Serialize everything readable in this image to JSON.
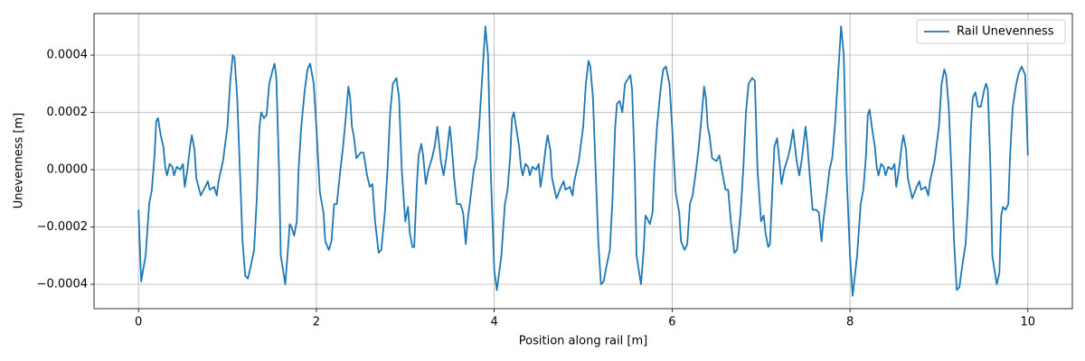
{
  "chart_data": {
    "type": "line",
    "xlabel": "Position along rail [m]",
    "ylabel": "Unevenness [m]",
    "xlim": [
      -0.5,
      10.5
    ],
    "ylim": [
      -0.000485,
      0.000545
    ],
    "xticks": [
      0,
      2,
      4,
      6,
      8,
      10
    ],
    "yticks": [
      {
        "value": -0.0004,
        "label": "−0.0004"
      },
      {
        "value": -0.0002,
        "label": "−0.0002"
      },
      {
        "value": 0,
        "label": "0.0000"
      },
      0.0002,
      0.0004
    ],
    "grid": true,
    "legend": "upper right",
    "x": [
      0,
      0.03,
      0.08,
      0.12,
      0.15,
      0.18,
      0.2,
      0.22,
      0.25,
      0.28,
      0.3,
      0.32,
      0.35,
      0.38,
      0.4,
      0.43,
      0.47,
      0.5,
      0.52,
      0.55,
      0.58,
      0.6,
      0.63,
      0.65,
      0.7,
      0.75,
      0.78,
      0.8,
      0.85,
      0.88,
      0.9,
      0.95,
      1.0,
      1.03,
      1.06,
      1.08,
      1.11,
      1.14,
      1.17,
      1.2,
      1.23,
      1.26,
      1.3,
      1.33,
      1.36,
      1.38,
      1.41,
      1.44,
      1.47,
      1.51,
      1.53,
      1.55,
      1.58,
      1.6,
      1.65,
      1.68,
      1.7,
      1.72,
      1.75,
      1.78,
      1.8,
      1.83,
      1.87,
      1.9,
      1.93,
      1.97,
      2.0,
      2.04,
      2.08,
      2.1,
      2.14,
      2.17,
      2.2,
      2.23,
      2.27,
      2.3,
      2.33,
      2.36,
      2.38,
      2.4,
      2.42,
      2.45,
      2.5,
      2.53,
      2.57,
      2.6,
      2.63,
      2.66,
      2.7,
      2.73,
      2.77,
      2.8,
      2.83,
      2.86,
      2.9,
      2.93,
      2.96,
      3.0,
      3.03,
      3.05,
      3.08,
      3.1,
      3.13,
      3.15,
      3.18,
      3.2,
      3.23,
      3.26,
      3.3,
      3.33,
      3.36,
      3.4,
      3.43,
      3.46,
      3.5,
      3.52,
      3.55,
      3.58,
      3.62,
      3.65,
      3.68,
      3.7,
      3.74,
      3.77,
      3.8,
      3.83,
      3.87,
      3.9,
      3.93,
      3.96,
      4,
      4.03,
      4.08,
      4.12,
      4.15,
      4.18,
      4.2,
      4.22,
      4.25,
      4.28,
      4.3,
      4.32,
      4.35,
      4.38,
      4.4,
      4.43,
      4.47,
      4.5,
      4.52,
      4.55,
      4.58,
      4.6,
      4.63,
      4.65,
      4.7,
      4.75,
      4.78,
      4.8,
      4.85,
      4.88,
      4.9,
      4.95,
      5.0,
      5.03,
      5.06,
      5.08,
      5.11,
      5.14,
      5.17,
      5.2,
      5.23,
      5.26,
      5.3,
      5.33,
      5.36,
      5.38,
      5.41,
      5.44,
      5.47,
      5.51,
      5.53,
      5.55,
      5.58,
      5.6,
      5.65,
      5.68,
      5.7,
      5.72,
      5.75,
      5.78,
      5.8,
      5.83,
      5.87,
      5.9,
      5.93,
      5.97,
      6.0,
      6.04,
      6.08,
      6.1,
      6.14,
      6.17,
      6.2,
      6.23,
      6.27,
      6.3,
      6.33,
      6.36,
      6.38,
      6.4,
      6.42,
      6.45,
      6.5,
      6.53,
      6.57,
      6.6,
      6.63,
      6.66,
      6.7,
      6.73,
      6.77,
      6.8,
      6.83,
      6.86,
      6.9,
      6.93,
      6.96,
      7.0,
      7.03,
      7.05,
      7.08,
      7.1,
      7.13,
      7.15,
      7.18,
      7.2,
      7.23,
      7.26,
      7.3,
      7.33,
      7.36,
      7.4,
      7.43,
      7.46,
      7.5,
      7.52,
      7.55,
      7.58,
      7.62,
      7.65,
      7.68,
      7.7,
      7.74,
      7.77,
      7.8,
      7.83,
      7.87,
      7.9,
      7.93,
      7.96,
      8,
      8.03,
      8.08,
      8.12,
      8.15,
      8.18,
      8.2,
      8.22,
      8.25,
      8.28,
      8.3,
      8.32,
      8.35,
      8.38,
      8.4,
      8.43,
      8.47,
      8.5,
      8.52,
      8.55,
      8.58,
      8.6,
      8.63,
      8.65,
      8.7,
      8.75,
      8.78,
      8.8,
      8.85,
      8.88,
      8.9,
      8.95,
      9.0,
      9.03,
      9.06,
      9.08,
      9.11,
      9.14,
      9.17,
      9.2,
      9.23,
      9.26,
      9.3,
      9.33,
      9.36,
      9.38,
      9.41,
      9.44,
      9.47,
      9.51,
      9.53,
      9.55,
      9.58,
      9.6,
      9.65,
      9.68,
      9.7,
      9.72,
      9.75,
      9.78,
      9.8,
      9.83,
      9.87,
      9.9,
      9.93,
      9.97,
      10.0
    ],
    "series": [
      {
        "name": "Rail Unevenness",
        "color": "#1f77b4",
        "values": [
          -0.00014,
          -0.00039,
          -0.0003,
          -0.00012,
          -7e-05,
          5e-05,
          0.00017,
          0.00018,
          0.00012,
          8e-05,
          1e-05,
          -2e-05,
          2e-05,
          1e-05,
          -2e-05,
          1e-05,
          0,
          2e-05,
          -6e-05,
          0,
          8e-05,
          0.00012,
          7e-05,
          -3e-05,
          -9e-05,
          -6e-05,
          -4e-05,
          -7e-05,
          -6e-05,
          -9e-05,
          -4e-05,
          3e-05,
          0.00015,
          0.0003,
          0.0004,
          0.00039,
          0.00025,
          0,
          -0.00025,
          -0.00037,
          -0.00038,
          -0.00034,
          -0.00028,
          -0.0001,
          0.00015,
          0.0002,
          0.00018,
          0.00019,
          0.0003,
          0.00035,
          0.00037,
          0.00032,
          0,
          -0.0003,
          -0.0004,
          -0.00028,
          -0.00019,
          -0.0002,
          -0.00023,
          -0.00018,
          0,
          0.00015,
          0.00028,
          0.00035,
          0.00037,
          0.0003,
          0.00015,
          -8e-05,
          -0.00015,
          -0.00025,
          -0.00028,
          -0.00025,
          -0.00012,
          -0.00012,
          0,
          8e-05,
          0.00018,
          0.00029,
          0.00025,
          0.00015,
          0.00012,
          4e-05,
          6e-05,
          6e-05,
          -2e-05,
          -6e-05,
          -5e-05,
          -0.00018,
          -0.00029,
          -0.00028,
          -0.00015,
          0,
          0.0002,
          0.0003,
          0.00032,
          0.00025,
          0,
          -0.00018,
          -0.00013,
          -0.00022,
          -0.00027,
          -0.00027,
          -5e-05,
          5e-05,
          9e-05,
          5e-05,
          -5e-05,
          0,
          4e-05,
          8e-05,
          0.00015,
          3e-05,
          -2e-05,
          4e-05,
          0.00015,
          9e-05,
          -3e-05,
          -0.00012,
          -0.00012,
          -0.00015,
          -0.00026,
          -0.00018,
          -8e-05,
          0,
          4e-05,
          0.00015,
          0.00035,
          0.0005,
          0.0004,
          0,
          -0.00035,
          -0.00042,
          -0.0003,
          -0.00012,
          -7e-05,
          5e-05,
          0.00018,
          0.0002,
          0.00014,
          8e-05,
          1e-05,
          -2e-05,
          2e-05,
          1e-05,
          -2e-05,
          1e-05,
          0,
          2e-05,
          -6e-05,
          0,
          8e-05,
          0.00012,
          7e-05,
          -3e-05,
          -0.0001,
          -6e-05,
          -4e-05,
          -7e-05,
          -6e-05,
          -9e-05,
          -4e-05,
          3e-05,
          0.00015,
          0.0003,
          0.00038,
          0.00036,
          0.00025,
          0,
          -0.00025,
          -0.0004,
          -0.00039,
          -0.00034,
          -0.00028,
          -0.0001,
          0.00015,
          0.00023,
          0.00024,
          0.0002,
          0.0003,
          0.00032,
          0.00033,
          0.00028,
          0,
          -0.0003,
          -0.0004,
          -0.00028,
          -0.00016,
          -0.00017,
          -0.00019,
          -0.00015,
          0,
          0.00015,
          0.00028,
          0.00035,
          0.00036,
          0.0003,
          0.00015,
          -8e-05,
          -0.00015,
          -0.00025,
          -0.00028,
          -0.00026,
          -0.00012,
          -9e-05,
          0,
          8e-05,
          0.00018,
          0.00029,
          0.00025,
          0.00015,
          0.00012,
          4e-05,
          3e-05,
          5e-05,
          -2e-05,
          -7e-05,
          -7e-05,
          -0.00018,
          -0.00029,
          -0.00028,
          -0.00015,
          0,
          0.0002,
          0.0003,
          0.00032,
          0.00031,
          0,
          -0.00018,
          -0.00016,
          -0.00022,
          -0.00027,
          -0.00026,
          -5e-05,
          8e-05,
          0.00011,
          5e-05,
          -5e-05,
          0,
          4e-05,
          8e-05,
          0.00014,
          3e-05,
          -2e-05,
          4e-05,
          0.00015,
          9e-05,
          -3e-05,
          -0.00014,
          -0.00014,
          -0.00015,
          -0.00025,
          -0.00018,
          -8e-05,
          0,
          4e-05,
          0.00015,
          0.00035,
          0.0005,
          0.0004,
          0,
          -0.0003,
          -0.00044,
          -0.0003,
          -0.00012,
          -7e-05,
          5e-05,
          0.00019,
          0.00021,
          0.00014,
          8e-05,
          1e-05,
          -2e-05,
          2e-05,
          1e-05,
          -2e-05,
          1e-05,
          0,
          2e-05,
          -6e-05,
          0,
          8e-05,
          0.00012,
          7e-05,
          -3e-05,
          -0.0001,
          -6e-05,
          -4e-05,
          -7e-05,
          -6e-05,
          -9e-05,
          -4e-05,
          3e-05,
          0.00015,
          0.0003,
          0.00035,
          0.00033,
          0.00022,
          0,
          -0.00025,
          -0.00042,
          -0.00041,
          -0.00034,
          -0.00026,
          -0.0001,
          0.00015,
          0.00025,
          0.00027,
          0.00022,
          0.00022,
          0.00028,
          0.0003,
          0.00028,
          0,
          -0.0003,
          -0.0004,
          -0.00036,
          -0.00016,
          -0.00013,
          -0.00014,
          -0.00012,
          5e-05,
          0.00022,
          0.0003,
          0.00034,
          0.00036,
          0.00033,
          5e-05
        ]
      }
    ]
  }
}
